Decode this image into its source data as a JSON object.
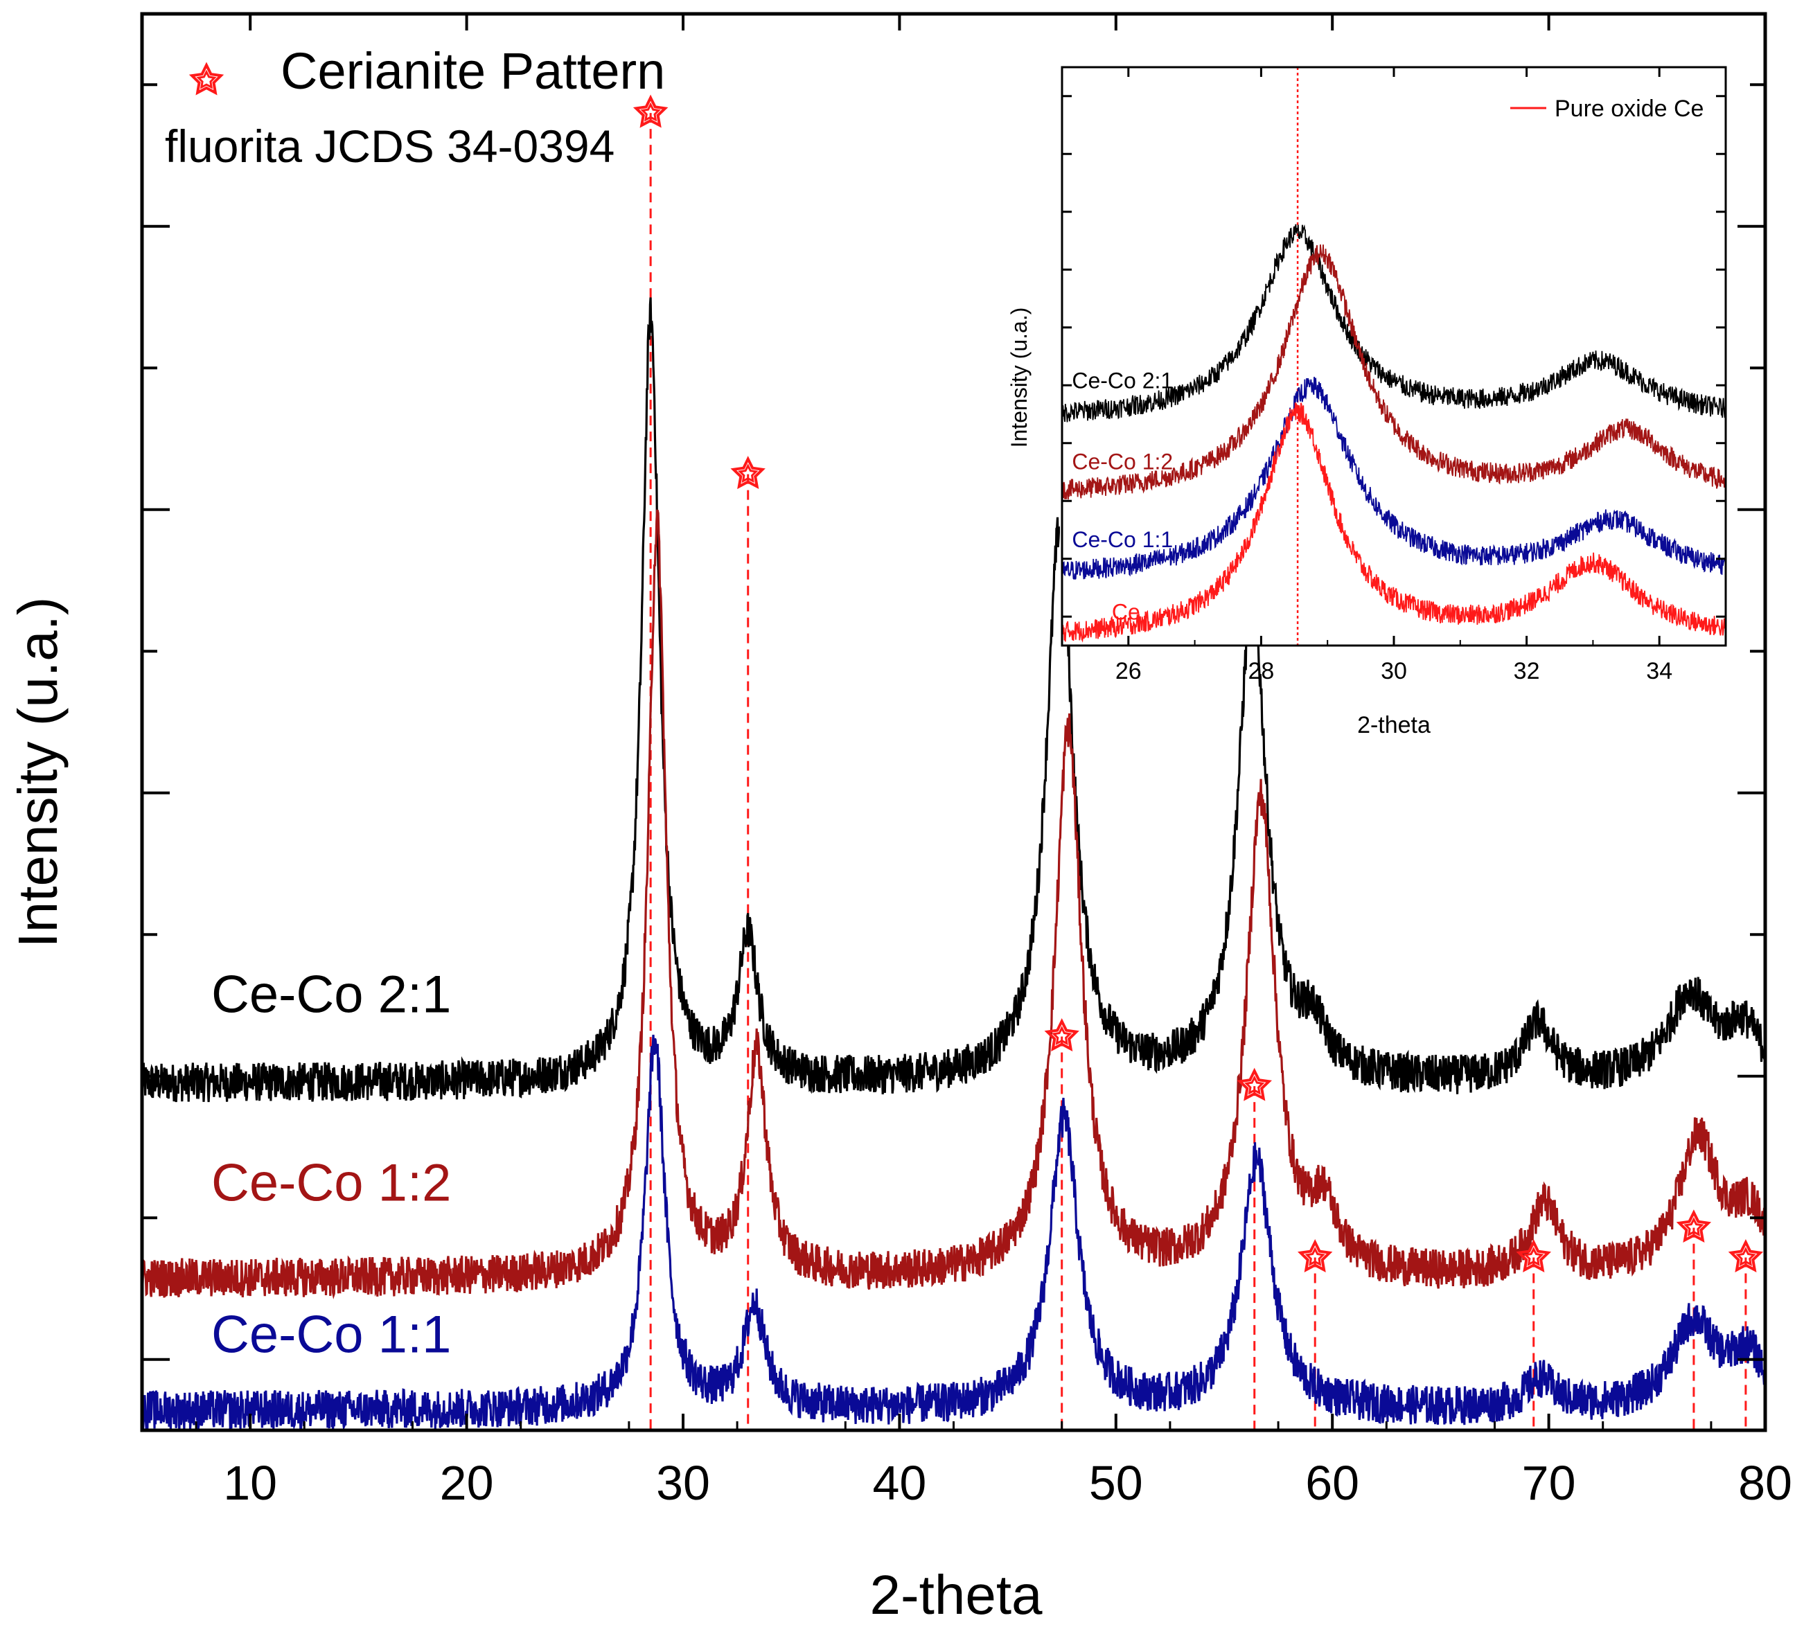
{
  "chart_data": [
    {
      "type": "line",
      "title": "",
      "xlabel": "2-theta",
      "ylabel": "Intensity (u.a.)",
      "xlim": [
        5,
        80
      ],
      "ylim": [
        0,
        10
      ],
      "xticks": [
        10,
        20,
        30,
        40,
        50,
        60,
        70,
        80
      ],
      "xtick_labels": [
        "10",
        "20",
        "30",
        "40",
        "50",
        "60",
        "70",
        "80"
      ],
      "yticks_shown_without_labels": true,
      "noise": 0.14,
      "legend": {
        "position": "top-left",
        "marker": "star",
        "label": "Cerianite Pattern",
        "sublabel": "fluorita JCDS 34-0394"
      },
      "reference_lines": {
        "name": "Cerianite Pattern",
        "color": "#ff1a1a",
        "style": "dashed",
        "lines": [
          {
            "x": 28.5,
            "marker_y": 9.3
          },
          {
            "x": 33.0,
            "marker_y": 6.75
          },
          {
            "x": 47.5,
            "marker_y": 2.78
          },
          {
            "x": 56.4,
            "marker_y": 2.43
          },
          {
            "x": 59.2,
            "marker_y": 1.22
          },
          {
            "x": 69.3,
            "marker_y": 1.22
          },
          {
            "x": 76.7,
            "marker_y": 1.43
          },
          {
            "x": 79.1,
            "marker_y": 1.22
          }
        ]
      },
      "series": [
        {
          "name": "Ce-Co 2:1",
          "color": "#000000",
          "baseline": 2.45,
          "label_x": 8.2,
          "label_y": 2.95,
          "peaks": [
            {
              "x": 28.5,
              "height": 5.4,
              "width": 0.5
            },
            {
              "x": 33.0,
              "height": 1.0,
              "width": 0.55
            },
            {
              "x": 47.4,
              "height": 3.9,
              "width": 0.75
            },
            {
              "x": 56.3,
              "height": 3.4,
              "width": 0.8
            },
            {
              "x": 59.1,
              "height": 0.3,
              "width": 0.7
            },
            {
              "x": 69.5,
              "height": 0.4,
              "width": 0.8
            },
            {
              "x": 76.5,
              "height": 0.6,
              "width": 1.2
            },
            {
              "x": 79.0,
              "height": 0.35,
              "width": 1.0
            }
          ]
        },
        {
          "name": "Ce-Co 1:2",
          "color": "#a31515",
          "baseline": 1.07,
          "label_x": 8.2,
          "label_y": 1.62,
          "peaks": [
            {
              "x": 28.8,
              "height": 5.3,
              "width": 0.5
            },
            {
              "x": 33.4,
              "height": 1.55,
              "width": 0.55
            },
            {
              "x": 47.8,
              "height": 3.85,
              "width": 0.75
            },
            {
              "x": 56.7,
              "height": 3.35,
              "width": 0.8
            },
            {
              "x": 59.6,
              "height": 0.42,
              "width": 0.7
            },
            {
              "x": 69.8,
              "height": 0.5,
              "width": 0.8
            },
            {
              "x": 76.9,
              "height": 0.95,
              "width": 1.1
            },
            {
              "x": 79.3,
              "height": 0.4,
              "width": 1.0
            }
          ]
        },
        {
          "name": "Ce-Co 1:1",
          "color": "#0a0a96",
          "baseline": 0.14,
          "label_x": 8.2,
          "label_y": 0.55,
          "peaks": [
            {
              "x": 28.7,
              "height": 2.6,
              "width": 0.55
            },
            {
              "x": 33.3,
              "height": 0.72,
              "width": 0.6
            },
            {
              "x": 47.6,
              "height": 2.05,
              "width": 0.8
            },
            {
              "x": 56.5,
              "height": 1.75,
              "width": 0.85
            },
            {
              "x": 69.6,
              "height": 0.2,
              "width": 0.8
            },
            {
              "x": 76.7,
              "height": 0.6,
              "width": 1.2
            },
            {
              "x": 79.2,
              "height": 0.35,
              "width": 1.0
            }
          ]
        }
      ]
    },
    {
      "type": "line",
      "title": "",
      "xlabel": "2-theta",
      "ylabel": "Intensity (u.a.)",
      "xlim": [
        25,
        35
      ],
      "ylim": [
        0,
        10
      ],
      "xticks": [
        26,
        28,
        30,
        32,
        34
      ],
      "xtick_labels": [
        "26",
        "28",
        "30",
        "32",
        "34"
      ],
      "noise": 0.18,
      "reference_line": {
        "x": 28.55,
        "color": "#ff1a1a",
        "style": "dotted"
      },
      "legend": {
        "position": "top-right",
        "label": "Pure oxide Ce",
        "color": "#ff1a1a"
      },
      "series": [
        {
          "name": "Ce-Co 2:1",
          "color": "#000000",
          "baseline": 3.9,
          "label_x": 25.15,
          "label_y": 4.45,
          "peaks": [
            {
              "x": 28.55,
              "height": 3.2,
              "width": 0.7
            },
            {
              "x": 33.1,
              "height": 0.95,
              "width": 0.85
            }
          ]
        },
        {
          "name": "Ce-Co 1:2",
          "color": "#a31515",
          "baseline": 2.55,
          "label_x": 25.15,
          "label_y": 3.05,
          "peaks": [
            {
              "x": 28.9,
              "height": 4.2,
              "width": 0.7
            },
            {
              "x": 33.5,
              "height": 1.1,
              "width": 0.8
            }
          ]
        },
        {
          "name": "Ce-Co 1:1",
          "color": "#0a0a96",
          "baseline": 1.15,
          "label_x": 25.15,
          "label_y": 1.7,
          "peaks": [
            {
              "x": 28.75,
              "height": 3.3,
              "width": 0.75
            },
            {
              "x": 33.3,
              "height": 0.95,
              "width": 0.85
            }
          ]
        },
        {
          "name": "Ce",
          "color": "#ff1a1a",
          "baseline": 0.1,
          "label_x": 25.75,
          "label_y": 0.45,
          "peaks": [
            {
              "x": 28.55,
              "height": 3.9,
              "width": 0.65
            },
            {
              "x": 33.0,
              "height": 1.25,
              "width": 0.8
            }
          ]
        }
      ]
    }
  ]
}
